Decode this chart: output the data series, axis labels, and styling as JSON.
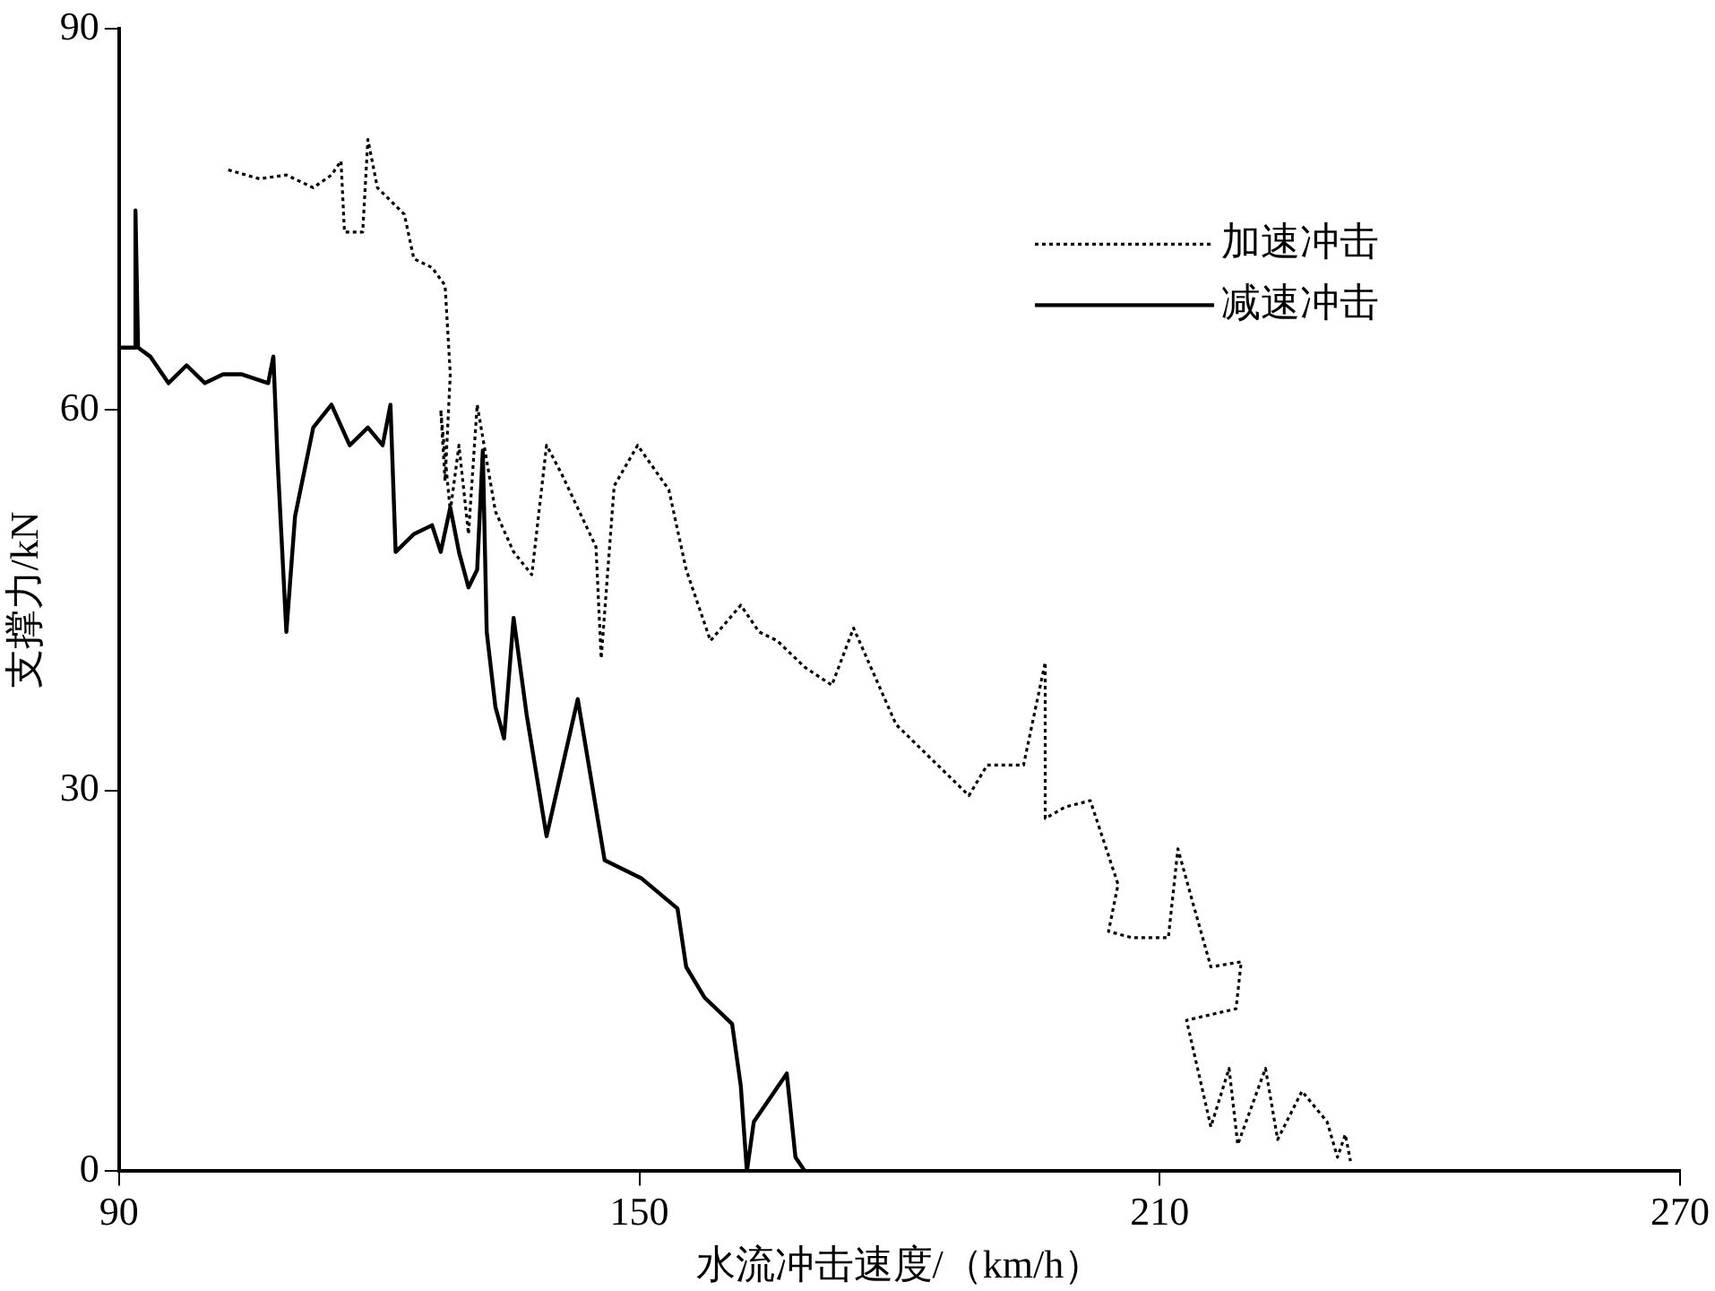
{
  "chart_data": {
    "type": "line",
    "xlabel": "水流冲击速度/（km/h）",
    "ylabel": "支撑力/kN",
    "xlim": [
      90,
      270
    ],
    "xticks": [
      90,
      150,
      210,
      270
    ],
    "ylim": [
      0,
      90
    ],
    "yticks": [
      0,
      30,
      60,
      90
    ],
    "grid": false,
    "legend": "top right",
    "marker": "none",
    "series": [
      {
        "name": "加速冲击",
        "color": "#000000",
        "line_style": "dotted",
        "x": [
          102.6,
          106.2,
          109.3,
          112.4,
          114.5,
          115.6,
          116,
          118.1,
          118.7,
          119.8,
          122.9,
          124,
          126.1,
          127.6,
          128.2,
          127.6,
          127.1,
          128.2,
          129.2,
          130.3,
          131.3,
          133.4,
          135.5,
          137.6,
          139.3,
          141,
          145,
          145.6,
          147.1,
          149.8,
          153.4,
          155.4,
          158.2,
          161.7,
          163.8,
          165.9,
          169.1,
          172.2,
          174.7,
          179.6,
          182.3,
          188,
          190.1,
          194.3,
          196.8,
          196.8,
          199.1,
          202,
          205.2,
          204.1,
          206.8,
          211,
          212.1,
          213.8,
          215.9,
          219.4,
          218.8,
          213.1,
          215.9,
          218,
          219,
          222.2,
          223.6,
          226.4,
          229.3,
          230.5,
          231.4,
          232
        ],
        "values": [
          78.9,
          78.2,
          78.5,
          77.5,
          78.5,
          79.6,
          74,
          74,
          81.3,
          77.5,
          75.4,
          71.9,
          71.2,
          69.8,
          62.8,
          54.4,
          60,
          52,
          57.2,
          50.2,
          60.4,
          52,
          48.8,
          47,
          57.2,
          55,
          49.2,
          40.4,
          54,
          57.2,
          53.7,
          47.4,
          41.8,
          44.6,
          42.5,
          41.8,
          39.7,
          38.3,
          42.8,
          35.2,
          33.4,
          29.6,
          32,
          32,
          40.1,
          27.8,
          28.7,
          29.2,
          22.6,
          18.9,
          18.4,
          18.4,
          25.4,
          21.2,
          16.1,
          16.5,
          12.8,
          11.9,
          3.5,
          8.1,
          2.1,
          8.1,
          2.5,
          6.3,
          3.9,
          1.1,
          2.9,
          0.8
        ]
      },
      {
        "name": "减速冲击",
        "color": "#000000",
        "line_style": "solid",
        "x": [
          90,
          91.9,
          91.9,
          92.2,
          93.6,
          95.7,
          97.8,
          99.9,
          102,
          104.1,
          107.2,
          107.8,
          108.3,
          109.3,
          110.3,
          112.4,
          114.5,
          116.6,
          118.7,
          120.4,
          121.3,
          121.9,
          124,
          126.1,
          127.1,
          128.2,
          129.2,
          130.3,
          131.3,
          131.95,
          132.4,
          133.4,
          134.4,
          135.5,
          137,
          139.3,
          142.9,
          146,
          150.2,
          154.4,
          155.4,
          157.5,
          160.7,
          161.7,
          162.4,
          163.2,
          167,
          168,
          169.1,
          270
        ],
        "values": [
          64.9,
          64.9,
          75.7,
          64.9,
          64.2,
          62.1,
          63.5,
          62.1,
          62.8,
          62.8,
          62.1,
          64.2,
          55.8,
          42.5,
          51.6,
          58.6,
          60.4,
          57.2,
          58.6,
          57.2,
          60.4,
          48.8,
          50.2,
          50.9,
          48.8,
          52.3,
          48.8,
          46,
          47.4,
          56.8,
          42.5,
          36.6,
          34.1,
          43.6,
          36,
          26.4,
          37.2,
          24.5,
          23.1,
          20.7,
          16.1,
          13.7,
          11.6,
          6.7,
          0,
          3.9,
          7.7,
          1.1,
          0,
          0
        ]
      }
    ]
  }
}
